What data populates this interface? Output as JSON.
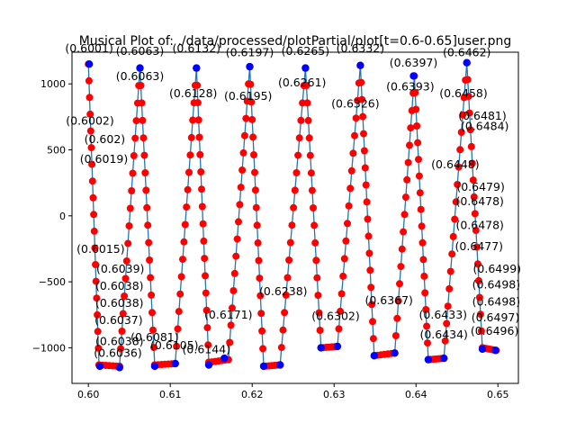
{
  "chart_data": {
    "type": "line",
    "title": "Musical Plot of: ./data/processed/plotPartial/plot[t=0.6-0.65]user.png",
    "xlabel": "",
    "ylabel": "",
    "xlim": [
      0.598,
      0.6525
    ],
    "ylim": [
      -1270,
      1240
    ],
    "grid": false,
    "x_ticks": [
      0.6,
      0.61,
      0.62,
      0.63,
      0.64,
      0.65
    ],
    "x_tick_labels": [
      "0.60",
      "0.61",
      "0.62",
      "0.63",
      "0.64",
      "0.65"
    ],
    "y_ticks": [
      -1000,
      -500,
      0,
      500,
      1000
    ],
    "y_tick_labels": [
      "−1000",
      "−500",
      "0",
      "500",
      "1000"
    ],
    "colors": {
      "line": "#1f77b4",
      "points": "#ff0000",
      "extrema": "#0000ff"
    },
    "waveform": {
      "x": [
        0.6,
        0.6013,
        0.6038,
        0.6063,
        0.6081,
        0.6106,
        0.6132,
        0.6147,
        0.6171,
        0.6197,
        0.6214,
        0.6234,
        0.6265,
        0.6284,
        0.6304,
        0.6332,
        0.6349,
        0.6374,
        0.6398,
        0.6415,
        0.6434,
        0.6462,
        0.6481,
        0.6498
      ],
      "y": [
        1150,
        -1130,
        -1140,
        1120,
        -1130,
        -1120,
        1120,
        -1110,
        -1090,
        1130,
        -1140,
        -1130,
        1120,
        -1000,
        -990,
        1140,
        -1060,
        -1040,
        1060,
        -1090,
        -1080,
        1160,
        -1000,
        -1020
      ]
    },
    "extrema_points": {
      "x": [
        0.6001,
        0.6014,
        0.6038,
        0.6063,
        0.6081,
        0.6106,
        0.6132,
        0.6147,
        0.6166,
        0.6197,
        0.6214,
        0.6234,
        0.6265,
        0.6284,
        0.6304,
        0.6332,
        0.6349,
        0.6374,
        0.6397,
        0.6415,
        0.6434,
        0.6462,
        0.6481,
        0.6497
      ],
      "y": [
        1150,
        -1140,
        -1150,
        1120,
        -1140,
        -1120,
        1120,
        -1130,
        -1080,
        1130,
        -1140,
        -1130,
        1120,
        -1000,
        -990,
        1140,
        -1060,
        -1040,
        1060,
        -1090,
        -1080,
        1160,
        -1010,
        -1020
      ]
    },
    "labels": [
      {
        "text": "(0.6001)",
        "x": 0.6001,
        "y": 1240
      },
      {
        "text": "(0.6063)",
        "x": 0.6063,
        "y": 1220
      },
      {
        "text": "(0.6132)",
        "x": 0.6132,
        "y": 1240
      },
      {
        "text": "(0.6197)",
        "x": 0.6197,
        "y": 1210
      },
      {
        "text": "(0.6265)",
        "x": 0.6265,
        "y": 1220
      },
      {
        "text": "(0.6332)",
        "x": 0.6332,
        "y": 1240
      },
      {
        "text": "(0.6397)",
        "x": 0.6397,
        "y": 1130
      },
      {
        "text": "(0.6462)",
        "x": 0.6462,
        "y": 1210
      },
      {
        "text": "(0.6063)",
        "x": 0.6063,
        "y": 1030
      },
      {
        "text": "(0.6128)",
        "x": 0.6128,
        "y": 900
      },
      {
        "text": "(0.6195)",
        "x": 0.6195,
        "y": 880
      },
      {
        "text": "(0.6261)",
        "x": 0.6261,
        "y": 980
      },
      {
        "text": "(0.6326)",
        "x": 0.6326,
        "y": 820
      },
      {
        "text": "(0.6393)",
        "x": 0.6393,
        "y": 950
      },
      {
        "text": "(0.6458)",
        "x": 0.6458,
        "y": 900
      },
      {
        "text": "(0.6002)",
        "x": 0.6002,
        "y": 690
      },
      {
        "text": "(0.602)",
        "x": 0.602,
        "y": 550
      },
      {
        "text": "(0.6019)",
        "x": 0.6019,
        "y": 400
      },
      {
        "text": "(0.6484)",
        "x": 0.6484,
        "y": 650
      },
      {
        "text": "(0.6481)",
        "x": 0.6481,
        "y": 730
      },
      {
        "text": "(0.6448)",
        "x": 0.6448,
        "y": 360
      },
      {
        "text": "(0.6479)",
        "x": 0.6479,
        "y": 190
      },
      {
        "text": "(0.6478)",
        "x": 0.6478,
        "y": 80
      },
      {
        "text": "(0.6478)",
        "x": 0.6478,
        "y": -100
      },
      {
        "text": "(0.6477)",
        "x": 0.6477,
        "y": -260
      },
      {
        "text": "(0.6499)",
        "x": 0.6499,
        "y": -430
      },
      {
        "text": "(0.6498)",
        "x": 0.6498,
        "y": -550
      },
      {
        "text": "(0.6498)",
        "x": 0.6498,
        "y": -680
      },
      {
        "text": "(0.6497)",
        "x": 0.6497,
        "y": -800
      },
      {
        "text": "(0.6496)",
        "x": 0.6496,
        "y": -900
      },
      {
        "text": "(0.6015)",
        "x": 0.6015,
        "y": -280
      },
      {
        "text": "(0.6039)",
        "x": 0.6039,
        "y": -430
      },
      {
        "text": "(0.6038)",
        "x": 0.6038,
        "y": -560
      },
      {
        "text": "(0.6038)",
        "x": 0.6038,
        "y": -690
      },
      {
        "text": "(0.6037)",
        "x": 0.6037,
        "y": -820
      },
      {
        "text": "(0.6038)",
        "x": 0.6038,
        "y": -980
      },
      {
        "text": "(0.6036)",
        "x": 0.6036,
        "y": -1070
      },
      {
        "text": "(0.6081)",
        "x": 0.6081,
        "y": -950
      },
      {
        "text": "(0.6105)",
        "x": 0.6105,
        "y": -1010
      },
      {
        "text": "(0.6144)",
        "x": 0.6144,
        "y": -1040
      },
      {
        "text": "(0.6171)",
        "x": 0.6171,
        "y": -780
      },
      {
        "text": "(0.6238)",
        "x": 0.6238,
        "y": -600
      },
      {
        "text": "(0.6302)",
        "x": 0.6302,
        "y": -790
      },
      {
        "text": "(0.6367)",
        "x": 0.6367,
        "y": -670
      },
      {
        "text": "(0.6433)",
        "x": 0.6433,
        "y": -780
      },
      {
        "text": "(0.6434)",
        "x": 0.6434,
        "y": -930
      }
    ]
  }
}
